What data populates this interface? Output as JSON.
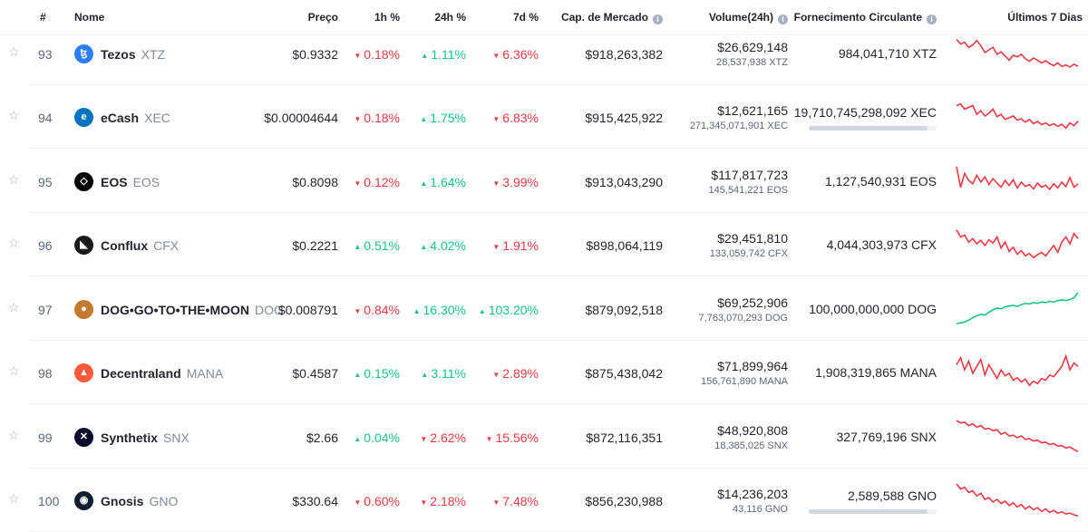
{
  "header": {
    "rank": "#",
    "name": "Nome",
    "price": "Preço",
    "h1": "1h %",
    "h24": "24h %",
    "d7": "7d %",
    "mcap": "Cap. de Mercado",
    "volume": "Volume(24h)",
    "supply": "Fornecimento Circulante",
    "last7": "Últimos 7 Dias",
    "info_glyph": "i"
  },
  "rows": [
    {
      "rank": "93",
      "name": "Tezos",
      "symbol": "XTZ",
      "price": "$0.9332",
      "h1": "0.18%",
      "h1_dir": "down",
      "h24": "1.11%",
      "h24_dir": "up",
      "d7": "6.36%",
      "d7_dir": "down",
      "mcap": "$918,263,382",
      "vol_usd": "$26,629,148",
      "vol_coin": "28,537,938 XTZ",
      "supply": "984,041,710 XTZ",
      "supply_bar": null,
      "trend": "down",
      "logo_color": "#2c7df7",
      "logo_glyph": "ꜩ",
      "spark": [
        0.12,
        0.25,
        0.2,
        0.35,
        0.28,
        0.15,
        0.3,
        0.5,
        0.42,
        0.35,
        0.55,
        0.48,
        0.6,
        0.72,
        0.58,
        0.62,
        0.55,
        0.68,
        0.75,
        0.66,
        0.72,
        0.8,
        0.74,
        0.82,
        0.88,
        0.8,
        0.9,
        0.86,
        0.92,
        0.84,
        0.9
      ]
    },
    {
      "rank": "94",
      "name": "eCash",
      "symbol": "XEC",
      "price": "$0.00004644",
      "h1": "0.18%",
      "h1_dir": "down",
      "h24": "1.75%",
      "h24_dir": "up",
      "d7": "6.83%",
      "d7_dir": "down",
      "mcap": "$915,425,922",
      "vol_usd": "$12,621,165",
      "vol_coin": "271,345,071,901 XEC",
      "supply": "19,710,745,298,092 XEC",
      "supply_bar": 0.93,
      "trend": "down",
      "logo_color": "#0074c2",
      "logo_glyph": "e",
      "spark": [
        0.2,
        0.15,
        0.3,
        0.25,
        0.2,
        0.45,
        0.35,
        0.5,
        0.42,
        0.3,
        0.52,
        0.45,
        0.6,
        0.55,
        0.5,
        0.62,
        0.58,
        0.68,
        0.6,
        0.72,
        0.66,
        0.75,
        0.7,
        0.78,
        0.72,
        0.8,
        0.74,
        0.85,
        0.7,
        0.78,
        0.65
      ]
    },
    {
      "rank": "95",
      "name": "EOS",
      "symbol": "EOS",
      "price": "$0.8098",
      "h1": "0.12%",
      "h1_dir": "down",
      "h24": "1.64%",
      "h24_dir": "up",
      "d7": "3.99%",
      "d7_dir": "down",
      "mcap": "$913,043,290",
      "vol_usd": "$117,817,723",
      "vol_coin": "145,541,221 EOS",
      "supply": "1,127,540,931 EOS",
      "supply_bar": null,
      "trend": "down",
      "logo_color": "#000000",
      "logo_glyph": "◇",
      "spark": [
        0.1,
        0.7,
        0.3,
        0.5,
        0.6,
        0.35,
        0.55,
        0.4,
        0.62,
        0.45,
        0.58,
        0.7,
        0.5,
        0.65,
        0.48,
        0.72,
        0.55,
        0.68,
        0.62,
        0.75,
        0.58,
        0.7,
        0.64,
        0.76,
        0.6,
        0.72,
        0.55,
        0.68,
        0.42,
        0.7,
        0.6
      ]
    },
    {
      "rank": "96",
      "name": "Conflux",
      "symbol": "CFX",
      "price": "$0.2221",
      "h1": "0.51%",
      "h1_dir": "up",
      "h24": "4.02%",
      "h24_dir": "up",
      "d7": "1.91%",
      "d7_dir": "down",
      "mcap": "$898,064,119",
      "vol_usd": "$29,451,810",
      "vol_coin": "133,059,742 CFX",
      "supply": "4,044,303,973 CFX",
      "supply_bar": null,
      "trend": "down",
      "logo_color": "#1a1a1a",
      "logo_glyph": "◣",
      "spark": [
        0.1,
        0.3,
        0.25,
        0.45,
        0.35,
        0.5,
        0.4,
        0.55,
        0.38,
        0.48,
        0.3,
        0.62,
        0.45,
        0.72,
        0.6,
        0.8,
        0.7,
        0.85,
        0.78,
        0.9,
        0.82,
        0.75,
        0.85,
        0.7,
        0.55,
        0.75,
        0.45,
        0.3,
        0.5,
        0.2,
        0.35
      ]
    },
    {
      "rank": "97",
      "name": "DOG•GO•TO•THE•MOON",
      "symbol": "DOG",
      "price": "$0.008791",
      "h1": "0.84%",
      "h1_dir": "down",
      "h24": "16.30%",
      "h24_dir": "up",
      "d7": "103.20%",
      "d7_dir": "up",
      "mcap": "$879,092,518",
      "vol_usd": "$69,252,906",
      "vol_coin": "7,763,070,293 DOG",
      "supply": "100,000,000,000 DOG",
      "supply_bar": null,
      "trend": "up",
      "logo_color": "#c47a2c",
      "logo_glyph": "●",
      "spark": [
        0.95,
        0.93,
        0.9,
        0.85,
        0.78,
        0.72,
        0.68,
        0.7,
        0.62,
        0.55,
        0.5,
        0.52,
        0.46,
        0.44,
        0.42,
        0.45,
        0.4,
        0.36,
        0.38,
        0.34,
        0.36,
        0.32,
        0.34,
        0.3,
        0.32,
        0.28,
        0.26,
        0.28,
        0.25,
        0.2,
        0.05
      ]
    },
    {
      "rank": "98",
      "name": "Decentraland",
      "symbol": "MANA",
      "price": "$0.4587",
      "h1": "0.15%",
      "h1_dir": "up",
      "h24": "3.11%",
      "h24_dir": "up",
      "d7": "2.89%",
      "d7_dir": "down",
      "mcap": "$875,438,042",
      "vol_usd": "$71,899,964",
      "vol_coin": "156,761,890 MANA",
      "supply": "1,908,319,865 MANA",
      "supply_bar": null,
      "trend": "down",
      "logo_color": "#ff5a3c",
      "logo_glyph": "▲",
      "spark": [
        0.3,
        0.1,
        0.45,
        0.2,
        0.55,
        0.35,
        0.15,
        0.6,
        0.3,
        0.5,
        0.7,
        0.45,
        0.62,
        0.55,
        0.75,
        0.68,
        0.8,
        0.72,
        0.9,
        0.78,
        0.85,
        0.7,
        0.75,
        0.6,
        0.65,
        0.5,
        0.35,
        0.05,
        0.45,
        0.25,
        0.35
      ]
    },
    {
      "rank": "99",
      "name": "Synthetix",
      "symbol": "SNX",
      "price": "$2.66",
      "h1": "0.04%",
      "h1_dir": "up",
      "h24": "2.62%",
      "h24_dir": "down",
      "d7": "15.56%",
      "d7_dir": "down",
      "mcap": "$872,116,351",
      "vol_usd": "$48,920,808",
      "vol_coin": "18,385,025 SNX",
      "supply": "327,769,196 SNX",
      "supply_bar": null,
      "trend": "down",
      "logo_color": "#0b0c2a",
      "logo_glyph": "✕",
      "spark": [
        0.05,
        0.12,
        0.1,
        0.2,
        0.15,
        0.25,
        0.2,
        0.3,
        0.28,
        0.35,
        0.32,
        0.45,
        0.4,
        0.5,
        0.48,
        0.55,
        0.5,
        0.6,
        0.58,
        0.65,
        0.62,
        0.7,
        0.68,
        0.75,
        0.72,
        0.8,
        0.78,
        0.85,
        0.82,
        0.9,
        0.95
      ]
    },
    {
      "rank": "100",
      "name": "Gnosis",
      "symbol": "GNO",
      "price": "$330.64",
      "h1": "0.60%",
      "h1_dir": "down",
      "h24": "2.18%",
      "h24_dir": "down",
      "d7": "7.48%",
      "d7_dir": "down",
      "mcap": "$856,230,988",
      "vol_usd": "$14,236,203",
      "vol_coin": "43,116 GNO",
      "supply": "2,589,588 GNO",
      "supply_bar": 0.93,
      "trend": "down",
      "logo_color": "#0f1e2e",
      "logo_glyph": "◉",
      "spark": [
        0.05,
        0.2,
        0.15,
        0.3,
        0.25,
        0.4,
        0.32,
        0.5,
        0.45,
        0.58,
        0.5,
        0.62,
        0.55,
        0.68,
        0.6,
        0.72,
        0.65,
        0.78,
        0.7,
        0.8,
        0.74,
        0.85,
        0.78,
        0.88,
        0.82,
        0.9,
        0.86,
        0.92,
        0.9,
        0.95,
        0.98
      ]
    }
  ],
  "colors": {
    "up": "#16c784",
    "down": "#ea3943",
    "text": "#222531",
    "muted": "#808a9d"
  }
}
